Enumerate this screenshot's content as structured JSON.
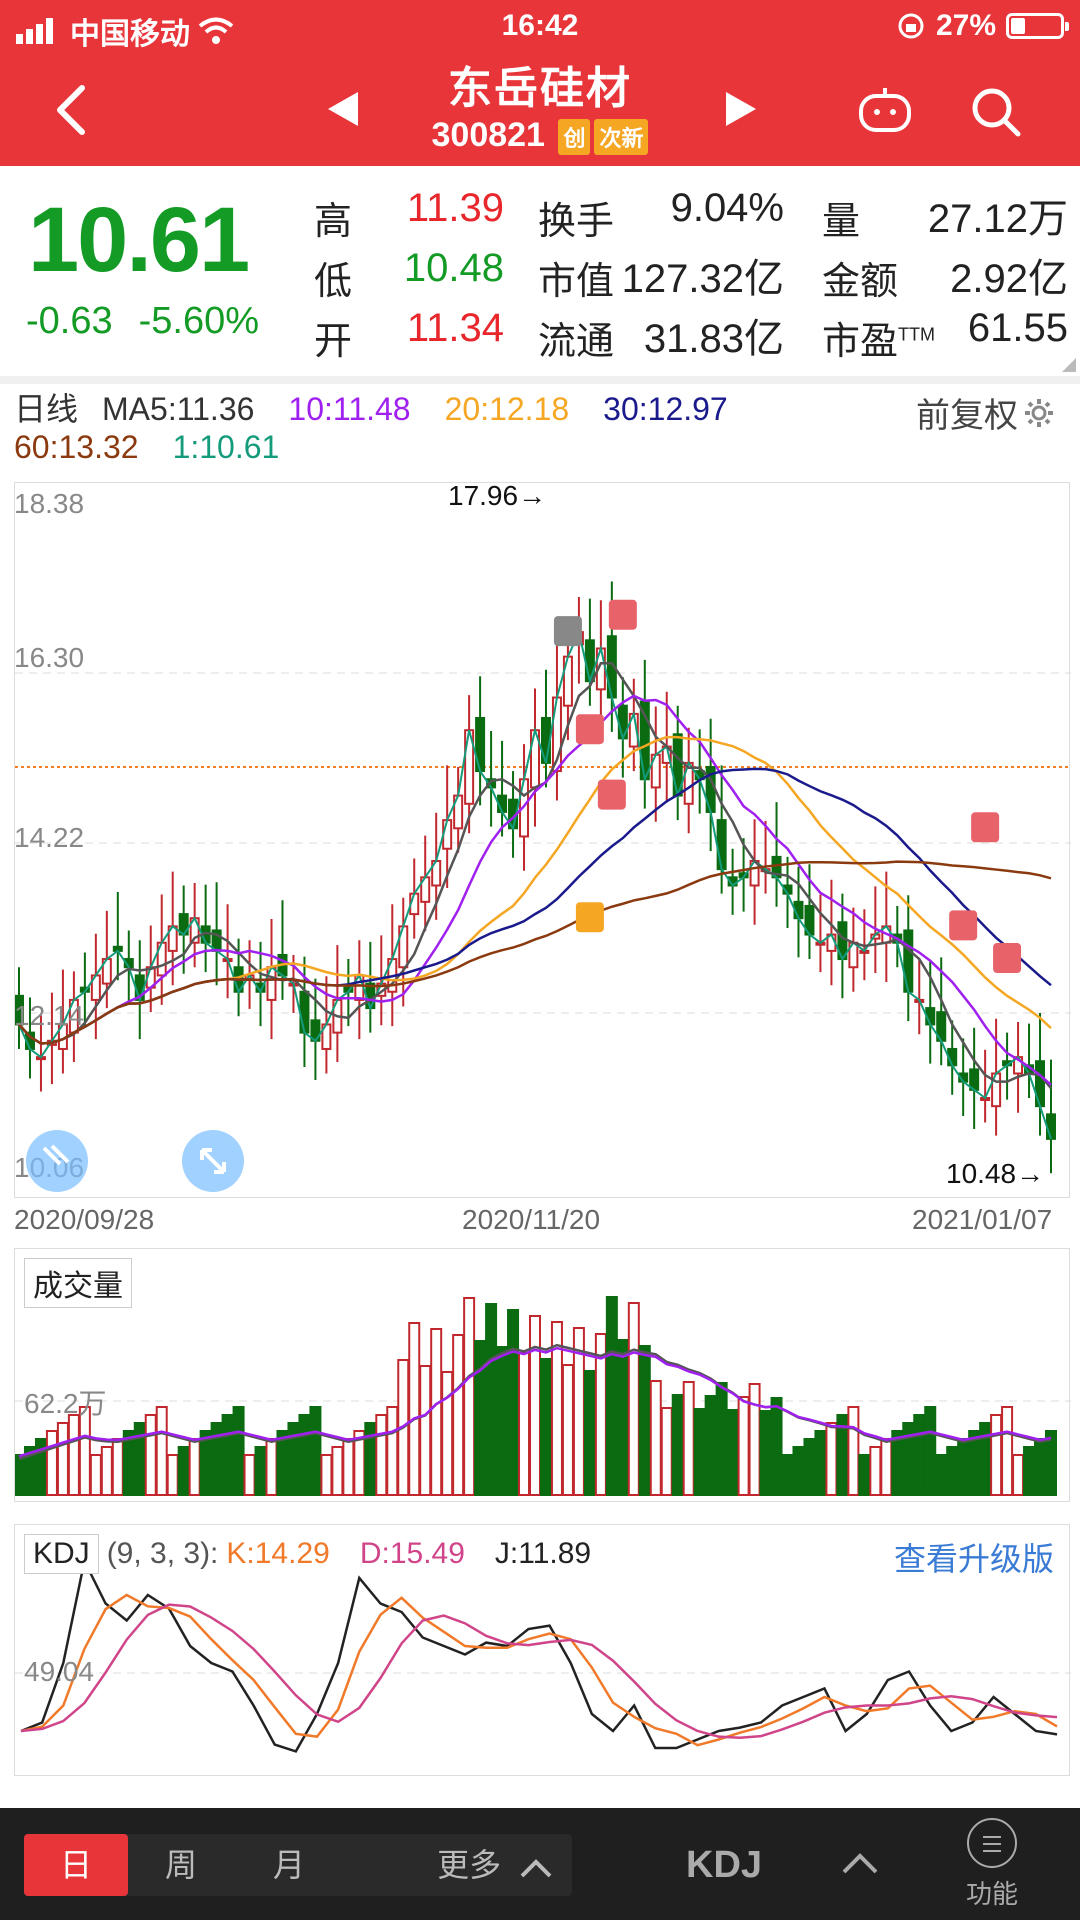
{
  "status": {
    "carrier": "中国移动",
    "time": "16:42",
    "battery": "27%"
  },
  "header": {
    "title": "东岳硅材",
    "code": "300821",
    "tag1": "创",
    "tag2": "次新"
  },
  "quote": {
    "price": "10.61",
    "change": "-0.63",
    "change_pct": "-5.60%",
    "high_label": "高",
    "high": "11.39",
    "low_label": "低",
    "low": "10.48",
    "open_label": "开",
    "open": "11.34",
    "turnover_label": "换手",
    "turnover": "9.04%",
    "mcap_label": "市值",
    "mcap": "127.32亿",
    "float_label": "流通",
    "float": "31.83亿",
    "vol_label": "量",
    "vol": "27.12万",
    "amount_label": "金额",
    "amount": "2.92亿",
    "pe_label": "市盈",
    "pe_sup": "TTM",
    "pe": "61.55"
  },
  "ma": {
    "period": "日线",
    "ma5": "MA5:11.36",
    "ma10": "10:11.48",
    "ma20": "20:12.18",
    "ma30": "30:12.97",
    "ma60": "60:13.32",
    "ma1": "1:10.61",
    "adjust": "前复权"
  },
  "colors": {
    "ma5": "#555555",
    "ma10": "#a020f0",
    "ma20": "#f5a623",
    "ma30": "#1a1a8c",
    "ma60": "#8b3a0f",
    "ma1": "#139b7b",
    "up": "#c0282d",
    "down": "#0a6b10"
  },
  "chart": {
    "y_labels": [
      "18.38",
      "16.30",
      "14.22",
      "12.14",
      "10.06"
    ],
    "dates": [
      "2020/09/28",
      "2020/11/20",
      "2021/01/07"
    ],
    "high_anno": "17.96→",
    "low_anno": "10.48→"
  },
  "volume": {
    "title": "成交量",
    "level": "62.2万"
  },
  "kdj": {
    "title": "KDJ",
    "params": "(9, 3, 3):",
    "k": "K:14.29",
    "d": "D:15.49",
    "j": "J:11.89",
    "upgrade": "查看升级版",
    "level": "49.04"
  },
  "bottom": {
    "day": "日",
    "week": "周",
    "month": "月",
    "more": "更多",
    "indicator": "KDJ",
    "func": "功能"
  }
}
